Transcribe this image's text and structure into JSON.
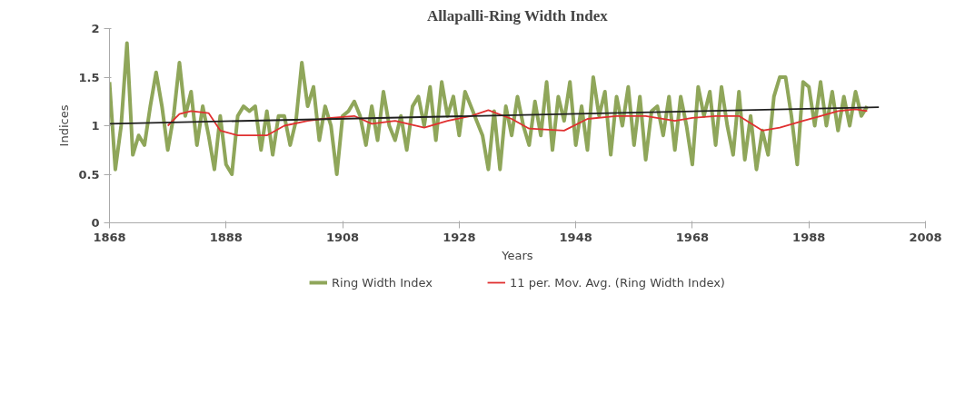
{
  "chart_data": {
    "type": "line",
    "title": "Allapalli-Ring Width Index",
    "xlabel": "Years",
    "ylabel": "Indices",
    "xlim": [
      1868,
      2008
    ],
    "ylim": [
      0,
      2
    ],
    "xticks": [
      1868,
      1888,
      1908,
      1928,
      1948,
      1968,
      1988,
      2008
    ],
    "yticks": [
      0,
      0.5,
      1,
      1.5,
      2
    ],
    "legend": "bottom",
    "series": [
      {
        "name": "Ring Width Index",
        "color": "#8fa65a",
        "x": [
          1868,
          1869,
          1870,
          1871,
          1872,
          1873,
          1874,
          1875,
          1876,
          1877,
          1878,
          1879,
          1880,
          1881,
          1882,
          1883,
          1884,
          1885,
          1886,
          1887,
          1888,
          1889,
          1890,
          1891,
          1892,
          1893,
          1894,
          1895,
          1896,
          1897,
          1898,
          1899,
          1900,
          1901,
          1902,
          1903,
          1904,
          1905,
          1906,
          1907,
          1908,
          1909,
          1910,
          1911,
          1912,
          1913,
          1914,
          1915,
          1916,
          1917,
          1918,
          1919,
          1920,
          1921,
          1922,
          1923,
          1924,
          1925,
          1926,
          1927,
          1928,
          1929,
          1930,
          1931,
          1932,
          1933,
          1934,
          1935,
          1936,
          1937,
          1938,
          1939,
          1940,
          1941,
          1942,
          1943,
          1944,
          1945,
          1946,
          1947,
          1948,
          1949,
          1950,
          1951,
          1952,
          1953,
          1954,
          1955,
          1956,
          1957,
          1958,
          1959,
          1960,
          1961,
          1962,
          1963,
          1964,
          1965,
          1966,
          1967,
          1968,
          1969,
          1970,
          1971,
          1972,
          1973,
          1974,
          1975,
          1976,
          1977,
          1978,
          1979,
          1980,
          1981,
          1982,
          1983,
          1984,
          1985,
          1986,
          1987,
          1988,
          1989,
          1990,
          1991,
          1992,
          1993,
          1994,
          1995,
          1996,
          1997,
          1998
        ],
        "values": [
          1.45,
          0.55,
          1.0,
          1.85,
          0.7,
          0.9,
          0.8,
          1.2,
          1.55,
          1.2,
          0.75,
          1.1,
          1.65,
          1.1,
          1.35,
          0.8,
          1.2,
          0.9,
          0.55,
          1.1,
          0.6,
          0.5,
          1.1,
          1.2,
          1.15,
          1.2,
          0.75,
          1.15,
          0.7,
          1.1,
          1.1,
          0.8,
          1.05,
          1.65,
          1.2,
          1.4,
          0.85,
          1.2,
          1.0,
          0.5,
          1.1,
          1.15,
          1.25,
          1.1,
          0.8,
          1.2,
          0.85,
          1.35,
          1.0,
          0.85,
          1.1,
          0.75,
          1.2,
          1.3,
          1.0,
          1.4,
          0.85,
          1.45,
          1.1,
          1.3,
          0.9,
          1.35,
          1.2,
          1.05,
          0.9,
          0.55,
          1.15,
          0.55,
          1.2,
          0.9,
          1.3,
          1.0,
          0.8,
          1.25,
          0.9,
          1.45,
          0.75,
          1.3,
          1.05,
          1.45,
          0.8,
          1.2,
          0.75,
          1.5,
          1.1,
          1.35,
          0.7,
          1.3,
          1.0,
          1.4,
          0.8,
          1.3,
          0.65,
          1.15,
          1.2,
          0.9,
          1.3,
          0.75,
          1.3,
          1.0,
          0.6,
          1.4,
          1.1,
          1.35,
          0.8,
          1.4,
          1.0,
          0.7,
          1.35,
          0.65,
          1.1,
          0.55,
          0.95,
          0.7,
          1.3,
          1.5,
          1.5,
          1.1,
          0.6,
          1.45,
          1.4,
          1.0,
          1.45,
          1.0,
          1.35,
          0.95,
          1.3,
          1.0,
          1.35,
          1.1,
          1.2
        ]
      },
      {
        "name": "11 per. Mov. Avg. (Ring Width Index)",
        "color": "#e03030",
        "x": [
          1878,
          1880,
          1882,
          1885,
          1887,
          1890,
          1895,
          1898,
          1902,
          1906,
          1910,
          1913,
          1917,
          1922,
          1926,
          1930,
          1933,
          1937,
          1940,
          1946,
          1950,
          1955,
          1960,
          1965,
          1968,
          1972,
          1976,
          1980,
          1983,
          1987,
          1990,
          1993,
          1996,
          1998
        ],
        "values": [
          1.0,
          1.12,
          1.15,
          1.13,
          0.95,
          0.9,
          0.9,
          1.0,
          1.05,
          1.08,
          1.1,
          1.02,
          1.05,
          0.98,
          1.05,
          1.1,
          1.16,
          1.07,
          0.97,
          0.95,
          1.07,
          1.1,
          1.1,
          1.05,
          1.08,
          1.1,
          1.1,
          0.95,
          0.98,
          1.05,
          1.1,
          1.15,
          1.17,
          1.15
        ]
      },
      {
        "color": "#202020",
        "x": [
          1868,
          2000
        ],
        "values": [
          1.02,
          1.19
        ]
      }
    ]
  }
}
